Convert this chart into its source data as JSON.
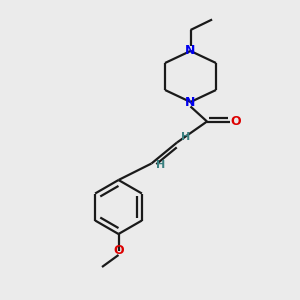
{
  "bg_color": "#ebebeb",
  "bond_color": "#1a1a1a",
  "N_color": "#0000ee",
  "O_color": "#dd0000",
  "H_color": "#3a8080",
  "line_width": 1.6,
  "fig_width": 3.0,
  "fig_height": 3.0,
  "dpi": 100,
  "xlim": [
    0,
    10
  ],
  "ylim": [
    0,
    10
  ]
}
